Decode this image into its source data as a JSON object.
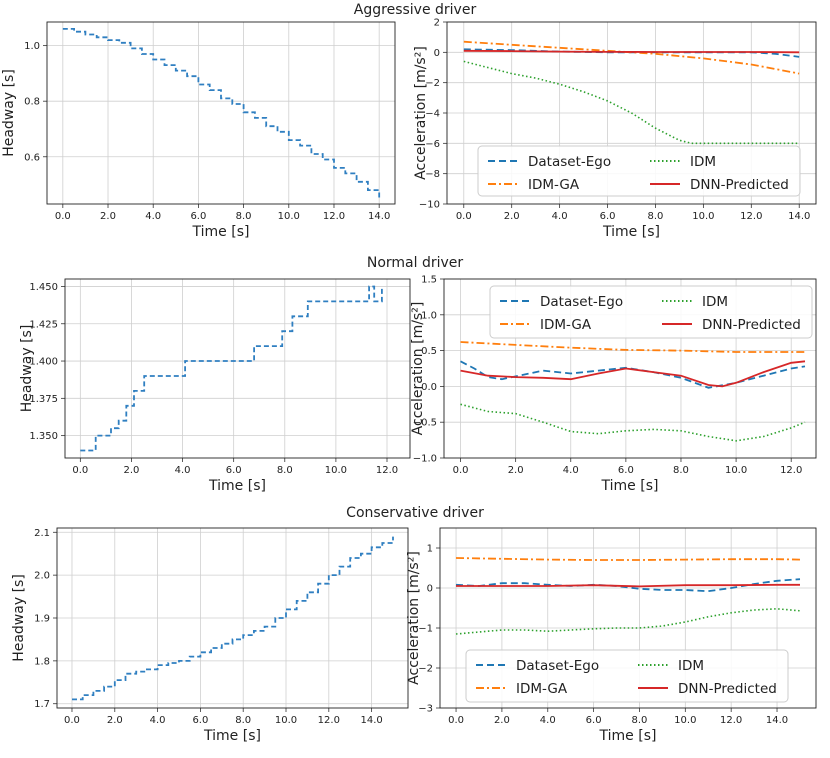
{
  "figure": {
    "colors": {
      "headway": "#2f7fc1",
      "dataset_ego": "#1f77b4",
      "idm": "#2ca02c",
      "idm_ga": "#ff7f0e",
      "dnn": "#d62728",
      "grid": "#cfcfcf"
    },
    "rows": [
      {
        "title": "Aggressive driver",
        "left": {
          "xlabel": "Time [s]",
          "ylabel": "Headway [s]"
        },
        "right": {
          "xlabel": "Time [s]",
          "ylabel": "Acceleration [m/s²]"
        },
        "legend": [
          "Dataset-Ego",
          "IDM",
          "IDM-GA",
          "DNN-Predicted"
        ]
      },
      {
        "title": "Normal driver",
        "left": {
          "xlabel": "Time [s]",
          "ylabel": "Headway [s]"
        },
        "right": {
          "xlabel": "Time [s]",
          "ylabel": "Acceleration [m/s²]"
        },
        "legend": [
          "Dataset-Ego",
          "IDM",
          "IDM-GA",
          "DNN-Predicted"
        ]
      },
      {
        "title": "Conservative driver",
        "left": {
          "xlabel": "Time [s]",
          "ylabel": "Headway [s]"
        },
        "right": {
          "xlabel": "Time [s]",
          "ylabel": "Acceleration [m/s²]"
        },
        "legend": [
          "Dataset-Ego",
          "IDM",
          "IDM-GA",
          "DNN-Predicted"
        ]
      }
    ]
  },
  "chart_data": [
    {
      "type": "line",
      "title": "Aggressive driver",
      "xlabel": "Time [s]",
      "ylabel": "Headway [s]",
      "xlim": [
        -0.7,
        14.7
      ],
      "ylim": [
        0.43,
        1.085
      ],
      "grid": true,
      "xticks": [
        "0.0",
        "2.0",
        "4.0",
        "6.0",
        "8.0",
        "10.0",
        "12.0",
        "14.0"
      ],
      "yticks": [
        "0.6",
        "0.8",
        "1.0"
      ],
      "series": [
        {
          "style": "dashed",
          "step": true,
          "x": [
            0,
            0.5,
            1,
            1.5,
            2,
            2.5,
            3,
            3.5,
            4,
            4.5,
            5,
            5.5,
            6,
            6.5,
            7,
            7.5,
            8,
            8.5,
            9,
            9.5,
            10,
            10.5,
            11,
            11.5,
            12,
            12.5,
            13,
            13.5,
            14
          ],
          "values": [
            1.06,
            1.05,
            1.04,
            1.03,
            1.02,
            1.01,
            0.99,
            0.97,
            0.95,
            0.93,
            0.91,
            0.89,
            0.86,
            0.84,
            0.81,
            0.79,
            0.76,
            0.74,
            0.71,
            0.69,
            0.66,
            0.64,
            0.61,
            0.59,
            0.56,
            0.54,
            0.51,
            0.48,
            0.45
          ]
        }
      ]
    },
    {
      "type": "line",
      "title": "Aggressive driver",
      "xlabel": "Time [s]",
      "ylabel": "Acceleration [m/s²]",
      "xlim": [
        -0.7,
        14.7
      ],
      "ylim": [
        -10,
        2
      ],
      "grid": true,
      "xticks": [
        "0.0",
        "2.0",
        "4.0",
        "6.0",
        "8.0",
        "10.0",
        "12.0",
        "14.0"
      ],
      "yticks": [
        "−10",
        "−8",
        "−6",
        "−4",
        "−2",
        "0",
        "2"
      ],
      "legend_position": "lower-center",
      "series": [
        {
          "name": "Dataset-Ego",
          "style": "dashed",
          "x": [
            0,
            2,
            4,
            6,
            8,
            10,
            12,
            13,
            14
          ],
          "values": [
            0.2,
            0.15,
            0.05,
            0.0,
            0.0,
            0.0,
            0.0,
            -0.1,
            -0.3
          ]
        },
        {
          "name": "IDM",
          "style": "dotted",
          "x": [
            0,
            1,
            2,
            3,
            4,
            5,
            6,
            7,
            8,
            9,
            9.5,
            10,
            11,
            12,
            13,
            14
          ],
          "values": [
            -0.6,
            -1.0,
            -1.4,
            -1.7,
            -2.1,
            -2.6,
            -3.2,
            -4.0,
            -5.0,
            -5.8,
            -6.0,
            -6.0,
            -6.0,
            -6.0,
            -6.0,
            -6.0
          ]
        },
        {
          "name": "IDM-GA",
          "style": "dashdot",
          "x": [
            0,
            2,
            4,
            6,
            8,
            10,
            12,
            13,
            14
          ],
          "values": [
            0.7,
            0.5,
            0.3,
            0.1,
            -0.1,
            -0.4,
            -0.8,
            -1.1,
            -1.4
          ]
        },
        {
          "name": "DNN-Predicted",
          "style": "solid",
          "x": [
            0,
            2,
            4,
            6,
            8,
            10,
            12,
            14
          ],
          "values": [
            0.1,
            0.08,
            0.05,
            0.03,
            0.02,
            0.02,
            0.02,
            0.0
          ]
        }
      ]
    },
    {
      "type": "line",
      "title": "Normal driver",
      "xlabel": "Time [s]",
      "ylabel": "Headway [s]",
      "xlim": [
        -0.6,
        12.9
      ],
      "ylim": [
        1.335,
        1.455
      ],
      "grid": true,
      "xticks": [
        "0.0",
        "2.0",
        "4.0",
        "6.0",
        "8.0",
        "10.0",
        "12.0"
      ],
      "yticks": [
        "1.350",
        "1.375",
        "1.400",
        "1.425",
        "1.450"
      ],
      "series": [
        {
          "style": "dashed",
          "step": true,
          "x": [
            0,
            0.6,
            1.2,
            1.5,
            1.8,
            2.1,
            2.5,
            4.1,
            6.8,
            7.9,
            8.3,
            8.9,
            9.1,
            11.3,
            11.5,
            11.8
          ],
          "values": [
            1.34,
            1.35,
            1.355,
            1.36,
            1.37,
            1.38,
            1.39,
            1.4,
            1.41,
            1.42,
            1.43,
            1.44,
            1.44,
            1.45,
            1.44,
            1.45
          ]
        }
      ]
    },
    {
      "type": "line",
      "title": "Normal driver",
      "xlabel": "Time [s]",
      "ylabel": "Acceleration [m/s²]",
      "xlim": [
        -0.6,
        12.9
      ],
      "ylim": [
        -1.0,
        1.5
      ],
      "grid": true,
      "xticks": [
        "0.0",
        "2.0",
        "4.0",
        "6.0",
        "8.0",
        "10.0",
        "12.0"
      ],
      "yticks": [
        "−1.0",
        "−0.5",
        "0.0",
        "0.5",
        "1.0",
        "1.5"
      ],
      "legend_position": "upper-center",
      "series": [
        {
          "name": "Dataset-Ego",
          "style": "dashed",
          "x": [
            0,
            0.5,
            1,
            1.5,
            2,
            3,
            4,
            5,
            6,
            7,
            8,
            9,
            10,
            11,
            12,
            12.5
          ],
          "values": [
            0.35,
            0.25,
            0.13,
            0.1,
            0.14,
            0.22,
            0.18,
            0.22,
            0.26,
            0.2,
            0.12,
            -0.02,
            0.05,
            0.15,
            0.25,
            0.28
          ]
        },
        {
          "name": "IDM",
          "style": "dotted",
          "x": [
            0,
            1,
            2,
            3,
            4,
            5,
            6,
            7,
            8,
            9,
            10,
            11,
            12,
            12.5
          ],
          "values": [
            -0.25,
            -0.35,
            -0.38,
            -0.5,
            -0.63,
            -0.66,
            -0.62,
            -0.6,
            -0.62,
            -0.7,
            -0.76,
            -0.7,
            -0.58,
            -0.5
          ]
        },
        {
          "name": "IDM-GA",
          "style": "dashdot",
          "x": [
            0,
            2,
            4,
            6,
            8,
            10,
            12,
            12.5
          ],
          "values": [
            0.62,
            0.58,
            0.54,
            0.51,
            0.5,
            0.48,
            0.48,
            0.48
          ]
        },
        {
          "name": "DNN-Predicted",
          "style": "solid",
          "x": [
            0,
            1,
            2,
            3,
            4,
            5,
            6,
            7,
            8,
            9,
            9.5,
            10,
            11,
            12,
            12.5
          ],
          "values": [
            0.22,
            0.15,
            0.13,
            0.12,
            0.1,
            0.18,
            0.25,
            0.2,
            0.15,
            0.02,
            0.0,
            0.05,
            0.2,
            0.33,
            0.35
          ]
        }
      ]
    },
    {
      "type": "line",
      "title": "Conservative driver",
      "xlabel": "Time [s]",
      "ylabel": "Headway [s]",
      "xlim": [
        -0.7,
        15.7
      ],
      "ylim": [
        1.69,
        2.11
      ],
      "grid": true,
      "xticks": [
        "0.0",
        "2.0",
        "4.0",
        "6.0",
        "8.0",
        "10.0",
        "12.0",
        "14.0"
      ],
      "yticks": [
        "1.7",
        "1.8",
        "1.9",
        "2.0",
        "2.1"
      ],
      "series": [
        {
          "style": "dashed",
          "step": true,
          "x": [
            0,
            0.5,
            1,
            1.5,
            2,
            2.5,
            3,
            3.5,
            4,
            4.5,
            5,
            5.5,
            6,
            6.5,
            7,
            7.5,
            8,
            8.5,
            9,
            9.5,
            10,
            10.5,
            11,
            11.5,
            12,
            12.5,
            13,
            13.5,
            14,
            14.5,
            15
          ],
          "values": [
            1.71,
            1.72,
            1.73,
            1.74,
            1.755,
            1.77,
            1.775,
            1.78,
            1.79,
            1.795,
            1.8,
            1.81,
            1.82,
            1.83,
            1.84,
            1.85,
            1.86,
            1.87,
            1.88,
            1.9,
            1.92,
            1.94,
            1.96,
            1.98,
            2.0,
            2.02,
            2.04,
            2.05,
            2.065,
            2.075,
            2.09
          ]
        }
      ]
    },
    {
      "type": "line",
      "title": "Conservative driver",
      "xlabel": "Time [s]",
      "ylabel": "Acceleration [m/s²]",
      "xlim": [
        -0.7,
        15.7
      ],
      "ylim": [
        -3,
        1.5
      ],
      "grid": true,
      "xticks": [
        "0.0",
        "2.0",
        "4.0",
        "6.0",
        "8.0",
        "10.0",
        "12.0",
        "14.0"
      ],
      "yticks": [
        "−3",
        "−2",
        "−1",
        "0",
        "1"
      ],
      "legend_position": "lower-center",
      "series": [
        {
          "name": "Dataset-Ego",
          "style": "dashed",
          "x": [
            0,
            1,
            2,
            3,
            4,
            5,
            6,
            7,
            8,
            9,
            10,
            11,
            12,
            13,
            14,
            15
          ],
          "values": [
            0.08,
            0.05,
            0.12,
            0.12,
            0.08,
            0.05,
            0.08,
            0.05,
            -0.02,
            -0.05,
            -0.05,
            -0.08,
            0.0,
            0.1,
            0.18,
            0.22
          ]
        },
        {
          "name": "IDM",
          "style": "dotted",
          "x": [
            0,
            1,
            2,
            3,
            4,
            5,
            6,
            7,
            8,
            9,
            10,
            11,
            12,
            13,
            14,
            15
          ],
          "values": [
            -1.15,
            -1.1,
            -1.05,
            -1.05,
            -1.08,
            -1.05,
            -1.02,
            -1.0,
            -1.0,
            -0.95,
            -0.85,
            -0.72,
            -0.62,
            -0.55,
            -0.52,
            -0.57
          ]
        },
        {
          "name": "IDM-GA",
          "style": "dashdot",
          "x": [
            0,
            2,
            4,
            6,
            8,
            10,
            12,
            14,
            15
          ],
          "values": [
            0.75,
            0.73,
            0.71,
            0.7,
            0.7,
            0.71,
            0.72,
            0.72,
            0.71
          ]
        },
        {
          "name": "DNN-Predicted",
          "style": "solid",
          "x": [
            0,
            2,
            4,
            6,
            8,
            10,
            12,
            14,
            15
          ],
          "values": [
            0.05,
            0.05,
            0.05,
            0.07,
            0.04,
            0.07,
            0.07,
            0.08,
            0.08
          ]
        }
      ]
    }
  ]
}
